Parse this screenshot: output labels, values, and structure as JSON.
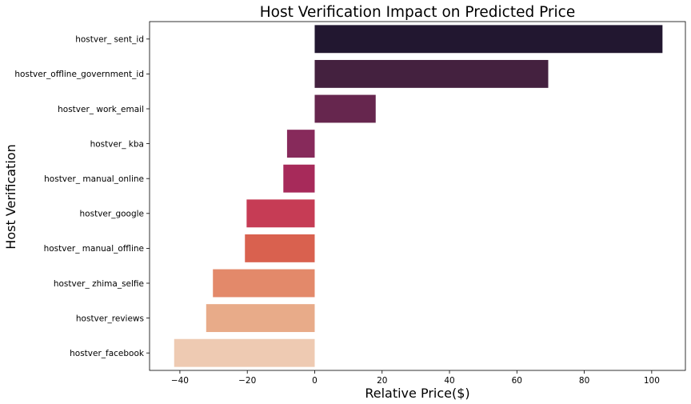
{
  "chart_data": {
    "type": "bar",
    "orientation": "horizontal",
    "title": "Host Verification Impact on Predicted Price",
    "xlabel": "Relative Price($)",
    "ylabel": "Host Verification",
    "categories": [
      "hostver_ sent_id",
      "hostver_offline_government_id",
      "hostver_ work_email",
      "hostver_ kba",
      "hostver_ manual_online",
      "hostver_google",
      "hostver_ manual_offline",
      "hostver_ zhima_selfie",
      "hostver_reviews",
      "hostver_facebook"
    ],
    "values": [
      103.2,
      69.3,
      18.1,
      -8.2,
      -9.3,
      -20.2,
      -20.7,
      -30.2,
      -32.2,
      -41.7
    ],
    "colors": [
      "#221730",
      "#44213f",
      "#66264e",
      "#872a5b",
      "#a72a5a",
      "#c63c55",
      "#d9614f",
      "#e3896a",
      "#e8ab89",
      "#eecab2"
    ],
    "xlim": [
      -49,
      110
    ],
    "xticks": [
      -40,
      -20,
      0,
      20,
      40,
      60,
      80,
      100
    ],
    "xtick_labels": [
      "−40",
      "−20",
      "0",
      "20",
      "40",
      "60",
      "80",
      "100"
    ],
    "grid": false,
    "legend": "none"
  }
}
